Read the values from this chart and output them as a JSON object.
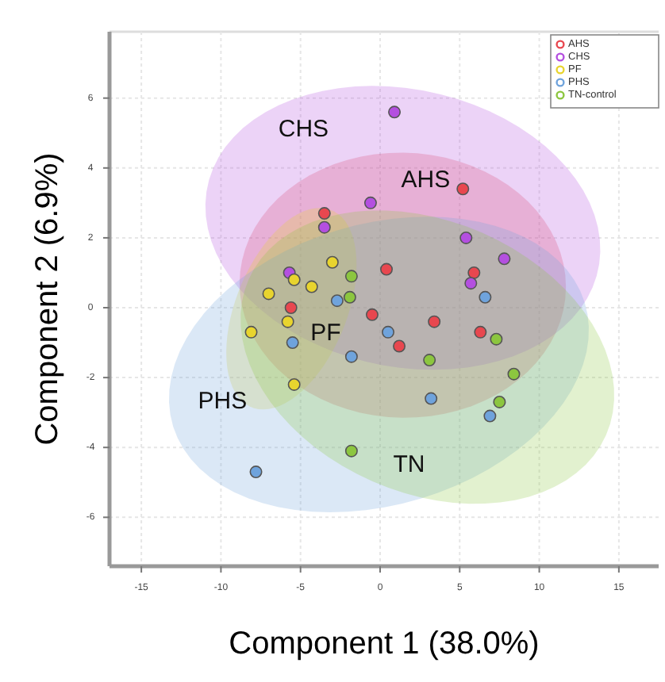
{
  "chart_data": {
    "type": "scatter",
    "xlabel": "Component 1 (38.0%)",
    "ylabel": "Component 2 (6.9%)",
    "xlim": [
      -17,
      17.5
    ],
    "ylim": [
      -7.4,
      7.9
    ],
    "xticks": [
      -15,
      -10,
      -5,
      0,
      5,
      10,
      15
    ],
    "yticks": [
      -6,
      -4,
      -2,
      0,
      2,
      4,
      6
    ],
    "grid": true,
    "legend": "top right",
    "marker": "circle",
    "series": [
      {
        "name": "AHS",
        "color": "#e8474f",
        "x": [
          -3.5,
          5.2,
          0.4,
          5.9,
          -5.6,
          -0.5,
          3.4,
          6.3,
          1.2
        ],
        "values": [
          2.7,
          3.4,
          1.1,
          1.0,
          0,
          -0.2,
          -0.4,
          -0.7,
          -1.1
        ]
      },
      {
        "name": "CHS",
        "color": "#b44fe0",
        "x": [
          0.9,
          -0.6,
          -3.5,
          5.4,
          7.8,
          5.7,
          -5.7
        ],
        "values": [
          5.6,
          3.0,
          2.3,
          2.0,
          1.4,
          0.7,
          1.0
        ]
      },
      {
        "name": "PF",
        "color": "#e8d42e",
        "x": [
          -3.0,
          -5.4,
          -7.0,
          -4.3,
          -8.1,
          -5.8,
          -5.4
        ],
        "values": [
          1.3,
          0.8,
          0.4,
          0.6,
          -0.7,
          -0.4,
          -2.2
        ]
      },
      {
        "name": "PHS",
        "color": "#6fa3dc",
        "x": [
          -2.7,
          -5.5,
          -1.8,
          6.6,
          0.5,
          3.2,
          6.9,
          -7.8
        ],
        "values": [
          0.2,
          -1.0,
          -1.4,
          0.3,
          -0.7,
          -2.6,
          -3.1,
          -4.7
        ]
      },
      {
        "name": "TN-control",
        "color": "#8cc63f",
        "x": [
          -1.8,
          -1.9,
          7.3,
          3.1,
          8.4,
          7.5,
          -1.8
        ],
        "values": [
          0.9,
          0.3,
          -0.9,
          -1.5,
          -1.9,
          -2.7,
          -4.1
        ]
      }
    ],
    "annotations": [
      "AHS",
      "CHS",
      "PF",
      "PHS",
      "TN"
    ]
  }
}
